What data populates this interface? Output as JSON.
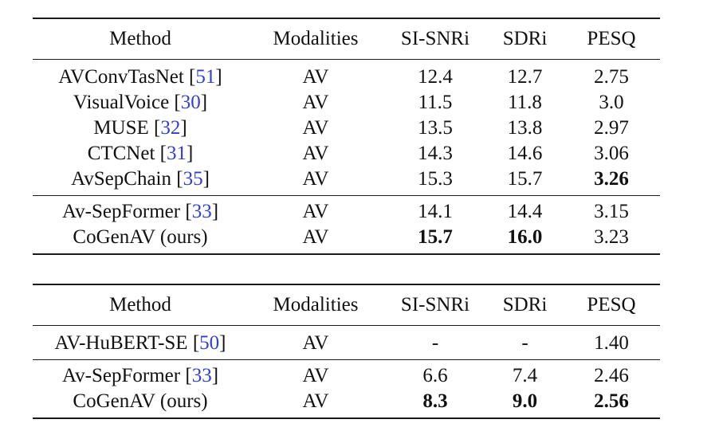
{
  "tables": [
    {
      "header": [
        "Method",
        "Modalities",
        "SI-SNRi",
        "SDRi",
        "PESQ"
      ],
      "groups": [
        [
          {
            "method": "AVConvTasNet",
            "ref": "51",
            "modalities": "AV",
            "si_snri": "12.4",
            "sdri": "12.7",
            "pesq": "2.75",
            "bold": []
          },
          {
            "method": "VisualVoice",
            "ref": "30",
            "modalities": "AV",
            "si_snri": "11.5",
            "sdri": "11.8",
            "pesq": "3.0",
            "bold": []
          },
          {
            "method": "MUSE",
            "ref": "32",
            "modalities": "AV",
            "si_snri": "13.5",
            "sdri": "13.8",
            "pesq": "2.97",
            "bold": []
          },
          {
            "method": "CTCNet",
            "ref": "31",
            "modalities": "AV",
            "si_snri": "14.3",
            "sdri": "14.6",
            "pesq": "3.06",
            "bold": []
          },
          {
            "method": "AvSepChain",
            "ref": "35",
            "modalities": "AV",
            "si_snri": "15.3",
            "sdri": "15.7",
            "pesq": "3.26",
            "bold": [
              "pesq"
            ]
          }
        ],
        [
          {
            "method": "Av-SepFormer",
            "ref": "33",
            "modalities": "AV",
            "si_snri": "14.1",
            "sdri": "14.4",
            "pesq": "3.15",
            "bold": []
          },
          {
            "method": "CoGenAV (ours)",
            "ref": "",
            "modalities": "AV",
            "si_snri": "15.7",
            "sdri": "16.0",
            "pesq": "3.23",
            "bold": [
              "si_snri",
              "sdri"
            ]
          }
        ]
      ]
    },
    {
      "header": [
        "Method",
        "Modalities",
        "SI-SNRi",
        "SDRi",
        "PESQ"
      ],
      "groups": [
        [
          {
            "method": "AV-HuBERT-SE",
            "ref": "50",
            "modalities": "AV",
            "si_snri": "-",
            "sdri": "-",
            "pesq": "1.40",
            "bold": []
          }
        ],
        [
          {
            "method": "Av-SepFormer",
            "ref": "33",
            "modalities": "AV",
            "si_snri": "6.6",
            "sdri": "7.4",
            "pesq": "2.46",
            "bold": []
          },
          {
            "method": "CoGenAV (ours)",
            "ref": "",
            "modalities": "AV",
            "si_snri": "8.3",
            "sdri": "9.0",
            "pesq": "2.56",
            "bold": [
              "si_snri",
              "sdri",
              "pesq"
            ]
          }
        ]
      ]
    }
  ]
}
